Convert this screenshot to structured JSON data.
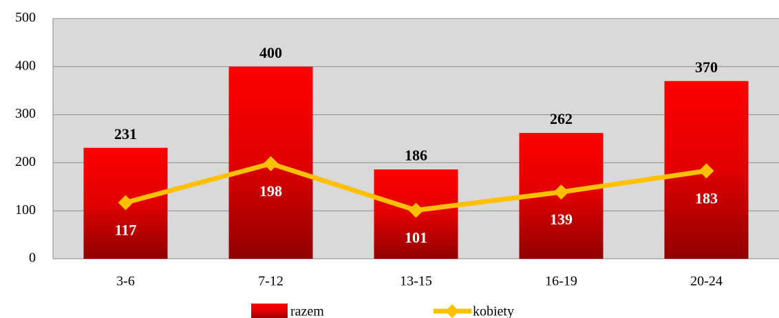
{
  "chart_data": {
    "type": "bar",
    "categories": [
      "3-6",
      "7-12",
      "13-15",
      "16-19",
      "20-24"
    ],
    "series": [
      {
        "name": "razem",
        "type": "bar",
        "color": "#ff0000",
        "values": [
          231,
          400,
          186,
          262,
          370
        ]
      },
      {
        "name": "kobiety",
        "type": "line",
        "color": "#ffc000",
        "values": [
          117,
          198,
          101,
          139,
          183
        ]
      }
    ],
    "ylim": [
      0,
      500
    ],
    "yticks": [
      0,
      100,
      200,
      300,
      400,
      500
    ],
    "grid": true,
    "legend": "bottom"
  }
}
